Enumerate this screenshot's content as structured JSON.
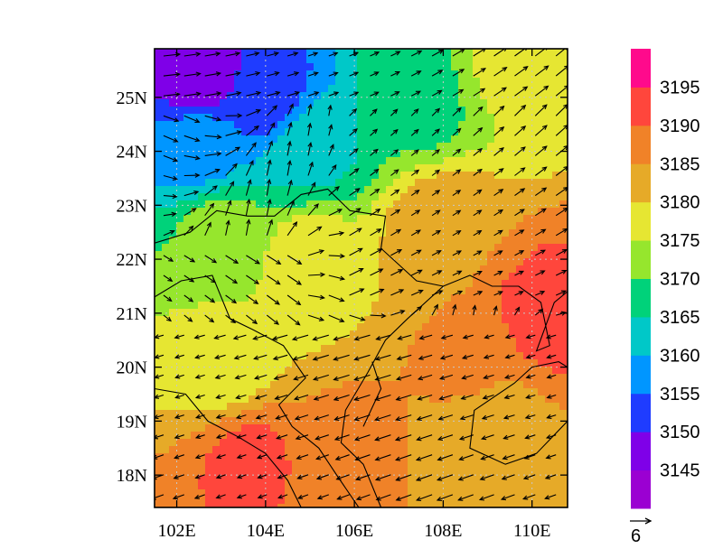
{
  "chart_data": {
    "type": "heatmap",
    "title": "",
    "xlabel": "",
    "ylabel": "",
    "x_ticks": [
      "102E",
      "104E",
      "106E",
      "108E",
      "110E"
    ],
    "y_ticks": [
      "25N",
      "24N",
      "23N",
      "22N",
      "21N",
      "20N",
      "19N",
      "18N"
    ],
    "xlim": [
      101.5,
      110.8
    ],
    "ylim": [
      17.4,
      25.9
    ],
    "x_tick_values": [
      102,
      104,
      106,
      108,
      110
    ],
    "y_tick_values": [
      25,
      24,
      23,
      22,
      21,
      20,
      19,
      18
    ],
    "grid": "dotted",
    "colorbar": {
      "levels": [
        "3145",
        "3150",
        "3155",
        "3160",
        "3165",
        "3170",
        "3175",
        "3180",
        "3185",
        "3190",
        "3195"
      ],
      "colors": [
        "#9b00d2",
        "#7f00e8",
        "#1f3cff",
        "#0096ff",
        "#00c8c8",
        "#00d27a",
        "#96e62d",
        "#e6e632",
        "#e6aa28",
        "#f08228",
        "#ff463c",
        "#ff0a8c"
      ]
    },
    "vector_reference": {
      "label": "6",
      "magnitude": 6
    },
    "field_samples": [
      {
        "lon": 102.5,
        "lat": 25.5,
        "value": 3146
      },
      {
        "lon": 104.0,
        "lat": 25.0,
        "value": 3152
      },
      {
        "lon": 102.5,
        "lat": 24.0,
        "value": 3158
      },
      {
        "lon": 105.0,
        "lat": 24.0,
        "value": 3164
      },
      {
        "lon": 107.5,
        "lat": 25.0,
        "value": 3168
      },
      {
        "lon": 109.5,
        "lat": 25.5,
        "value": 3176
      },
      {
        "lon": 103.0,
        "lat": 22.5,
        "value": 3172
      },
      {
        "lon": 105.0,
        "lat": 22.0,
        "value": 3178
      },
      {
        "lon": 108.0,
        "lat": 22.5,
        "value": 3184
      },
      {
        "lon": 110.3,
        "lat": 21.0,
        "value": 3192
      },
      {
        "lon": 108.5,
        "lat": 20.0,
        "value": 3186
      },
      {
        "lon": 103.0,
        "lat": 20.0,
        "value": 3177
      },
      {
        "lon": 103.6,
        "lat": 18.3,
        "value": 3191
      },
      {
        "lon": 106.0,
        "lat": 18.5,
        "value": 3186
      },
      {
        "lon": 109.0,
        "lat": 18.8,
        "value": 3181
      }
    ]
  },
  "colors": {
    "axis": "#000000",
    "grid": "#c8c8c8",
    "vector": "#000000",
    "coast": "#000000"
  }
}
